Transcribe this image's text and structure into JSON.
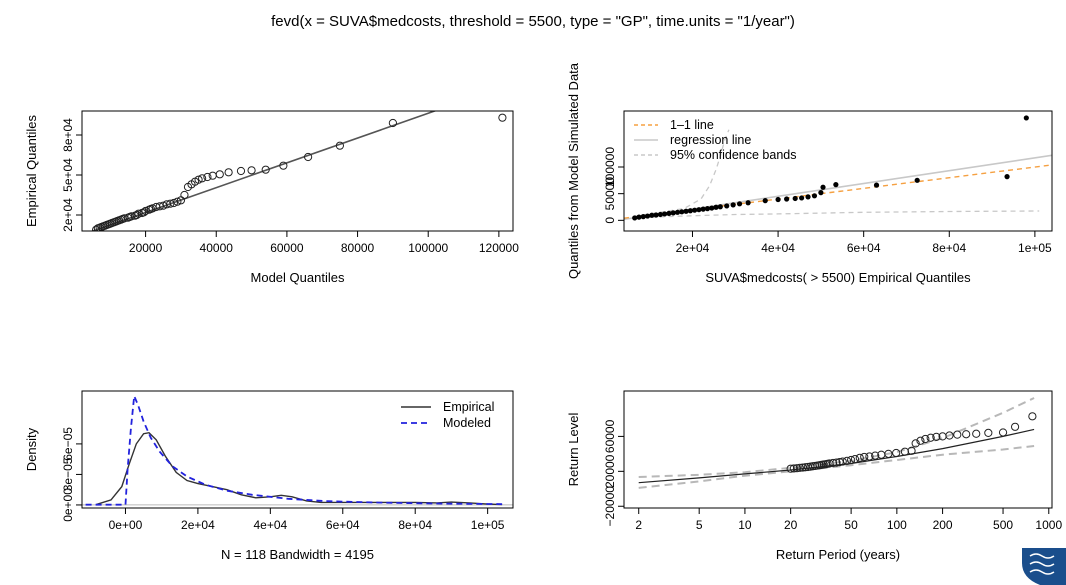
{
  "main_title": "fevd(x = SUVA$medcosts, threshold = 5500, type = \"GP\", time.units = \"1/year\")",
  "colors": {
    "axis": "#000000",
    "line": "#555555",
    "orange": "#f5a041",
    "lightgray": "#c8c8c8",
    "blue": "#2222dd",
    "crest_blue": "#1a4e8c"
  },
  "logo": {
    "name": "crest-logo"
  },
  "chart_data": [
    {
      "id": "qq-model",
      "type": "scatter",
      "xlabel": "Model Quantiles",
      "ylabel": "Empirical Quantiles",
      "xlim": [
        2000,
        124000
      ],
      "ylim": [
        8000,
        98000
      ],
      "xticks": [
        20000,
        40000,
        60000,
        80000,
        100000,
        120000
      ],
      "xtick_labels": [
        "20000",
        "40000",
        "60000",
        "80000",
        "100000",
        "120000"
      ],
      "yticks": [
        20000,
        50000,
        80000
      ],
      "ytick_labels": [
        "2e+04",
        "5e+04",
        "8e+04"
      ],
      "line": [
        [
          4000,
          7000
        ],
        [
          104000,
          100000
        ]
      ],
      "points": [
        [
          6000,
          9000
        ],
        [
          6500,
          10000
        ],
        [
          7000,
          10500
        ],
        [
          7500,
          11000
        ],
        [
          8000,
          11500
        ],
        [
          8500,
          12000
        ],
        [
          9000,
          12500
        ],
        [
          9500,
          13000
        ],
        [
          10000,
          13500
        ],
        [
          10500,
          14000
        ],
        [
          11000,
          14500
        ],
        [
          11500,
          15000
        ],
        [
          12000,
          15500
        ],
        [
          12500,
          16000
        ],
        [
          13000,
          16500
        ],
        [
          13500,
          17000
        ],
        [
          14000,
          17500
        ],
        [
          15000,
          18000
        ],
        [
          15500,
          18500
        ],
        [
          16000,
          19000
        ],
        [
          17000,
          19500
        ],
        [
          17500,
          20000
        ],
        [
          18000,
          21000
        ],
        [
          19000,
          21500
        ],
        [
          19500,
          22000
        ],
        [
          20000,
          23000
        ],
        [
          21000,
          24000
        ],
        [
          21500,
          24500
        ],
        [
          22000,
          25000
        ],
        [
          23000,
          26000
        ],
        [
          24000,
          26500
        ],
        [
          25000,
          27000
        ],
        [
          26000,
          28000
        ],
        [
          27000,
          28500
        ],
        [
          28000,
          29000
        ],
        [
          29000,
          30000
        ],
        [
          30000,
          31000
        ],
        [
          31000,
          35000
        ],
        [
          32000,
          41000
        ],
        [
          33000,
          43000
        ],
        [
          34000,
          45000
        ],
        [
          35000,
          46500
        ],
        [
          36000,
          47500
        ],
        [
          37500,
          48500
        ],
        [
          39000,
          49500
        ],
        [
          41000,
          50500
        ],
        [
          43500,
          52000
        ],
        [
          47000,
          53000
        ],
        [
          50000,
          53500
        ],
        [
          54000,
          54000
        ],
        [
          59000,
          57000
        ],
        [
          66000,
          63500
        ],
        [
          75000,
          72000
        ],
        [
          90000,
          89000
        ],
        [
          121000,
          93000
        ]
      ]
    },
    {
      "id": "qq-simulated",
      "type": "scatter",
      "xlabel": "SUVA$medcosts( > 5500) Empirical Quantiles",
      "ylabel": "Quantiles from Model Simulated Data",
      "xlim": [
        4000,
        104000
      ],
      "ylim": [
        -20000,
        205000
      ],
      "xticks": [
        20000,
        40000,
        60000,
        80000,
        100000
      ],
      "xtick_labels": [
        "2e+04",
        "4e+04",
        "6e+04",
        "8e+04",
        "1e+05"
      ],
      "yticks": [
        0,
        50000,
        100000
      ],
      "ytick_labels": [
        "0",
        "50000",
        "100000"
      ],
      "legend": {
        "position": "top-left",
        "entries": [
          "1–1 line",
          "regression line",
          "95% confidence bands"
        ]
      },
      "one_to_one": [
        [
          4000,
          4000
        ],
        [
          104000,
          104000
        ]
      ],
      "regression": [
        [
          4000,
          2000
        ],
        [
          104000,
          122000
        ]
      ],
      "band_upper": [
        [
          6000,
          7000
        ],
        [
          10000,
          12000
        ],
        [
          14000,
          17000
        ],
        [
          18000,
          22000
        ],
        [
          22000,
          40000
        ],
        [
          24000,
          65000
        ],
        [
          25500,
          95000
        ],
        [
          26500,
          120000
        ],
        [
          27500,
          150000
        ],
        [
          28500,
          170000
        ]
      ],
      "band_lower": [
        [
          6000,
          5000
        ],
        [
          14000,
          7000
        ],
        [
          22000,
          9000
        ],
        [
          30000,
          11000
        ],
        [
          40000,
          12000
        ],
        [
          50000,
          13500
        ],
        [
          60000,
          15000
        ],
        [
          80000,
          16500
        ],
        [
          101000,
          17500
        ]
      ],
      "points": [
        [
          6500,
          4500
        ],
        [
          7500,
          6000
        ],
        [
          8500,
          7000
        ],
        [
          9500,
          8000
        ],
        [
          10500,
          9500
        ],
        [
          11500,
          10000
        ],
        [
          12500,
          11000
        ],
        [
          13500,
          12000
        ],
        [
          14500,
          13000
        ],
        [
          15500,
          14000
        ],
        [
          16500,
          15000
        ],
        [
          17500,
          16000
        ],
        [
          18500,
          17000
        ],
        [
          19500,
          18000
        ],
        [
          20500,
          19000
        ],
        [
          21500,
          20000
        ],
        [
          22500,
          21000
        ],
        [
          23500,
          22000
        ],
        [
          24500,
          23000
        ],
        [
          25500,
          24500
        ],
        [
          26500,
          25500
        ],
        [
          28000,
          27000
        ],
        [
          29500,
          29000
        ],
        [
          31000,
          31000
        ],
        [
          33000,
          33000
        ],
        [
          37000,
          37000
        ],
        [
          40000,
          39000
        ],
        [
          42000,
          40000
        ],
        [
          44000,
          41000
        ],
        [
          45500,
          42000
        ],
        [
          47000,
          44000
        ],
        [
          48500,
          46000
        ],
        [
          50000,
          52000
        ],
        [
          50500,
          62000
        ],
        [
          53500,
          67000
        ],
        [
          63000,
          66000
        ],
        [
          72500,
          75000
        ],
        [
          93500,
          82000
        ],
        [
          98000,
          192000
        ]
      ]
    },
    {
      "id": "density",
      "type": "line",
      "xlabel": "N = 118   Bandwidth = 4195",
      "ylabel": "Density",
      "xlim": [
        -12000,
        107000
      ],
      "ylim": [
        -3e-06,
        0.000112
      ],
      "xticks": [
        0,
        20000,
        40000,
        60000,
        80000,
        100000
      ],
      "xtick_labels": [
        "0e+00",
        "2e+04",
        "4e+04",
        "6e+04",
        "8e+04",
        "1e+05"
      ],
      "yticks": [
        0,
        3e-05,
        6e-05
      ],
      "ytick_labels": [
        "0e+00",
        "3e−05",
        "6e−05"
      ],
      "legend": {
        "position": "top-right",
        "entries": [
          "Empirical",
          "Modeled"
        ]
      },
      "series": [
        {
          "name": "Empirical",
          "style": "solid",
          "points": [
            [
              -8000,
              5e-07
            ],
            [
              -4000,
              5e-06
            ],
            [
              -1000,
              1.8e-05
            ],
            [
              1000,
              4e-05
            ],
            [
              3000,
              6e-05
            ],
            [
              5000,
              7e-05
            ],
            [
              6500,
              7.1e-05
            ],
            [
              8500,
              6.4e-05
            ],
            [
              11000,
              4.8e-05
            ],
            [
              14000,
              3.2e-05
            ],
            [
              17000,
              2.4e-05
            ],
            [
              20000,
              2.1e-05
            ],
            [
              24000,
              1.8e-05
            ],
            [
              28000,
              1.5e-05
            ],
            [
              32000,
              1e-05
            ],
            [
              36000,
              7e-06
            ],
            [
              40000,
              8e-06
            ],
            [
              43000,
              9.5e-06
            ],
            [
              46000,
              8e-06
            ],
            [
              50000,
              4e-06
            ],
            [
              54000,
              2.5e-06
            ],
            [
              60000,
              2.5e-06
            ],
            [
              70000,
              2.5e-06
            ],
            [
              80000,
              2.5e-06
            ],
            [
              86000,
              2e-06
            ],
            [
              90000,
              2.8e-06
            ],
            [
              95000,
              2e-06
            ],
            [
              100000,
              8e-07
            ],
            [
              104000,
              3e-07
            ]
          ]
        },
        {
          "name": "Modeled",
          "style": "dashed",
          "points": [
            [
              -11000,
              2e-07
            ],
            [
              0,
              2e-07
            ],
            [
              600,
              3.5e-05
            ],
            [
              1500,
              7.5e-05
            ],
            [
              2400,
              0.000107
            ],
            [
              3500,
              9.8e-05
            ],
            [
              5000,
              8.2e-05
            ],
            [
              7000,
              6.6e-05
            ],
            [
              9500,
              5.2e-05
            ],
            [
              13000,
              3.8e-05
            ],
            [
              17000,
              2.8e-05
            ],
            [
              22000,
              2e-05
            ],
            [
              28000,
              1.4e-05
            ],
            [
              35000,
              1e-05
            ],
            [
              45000,
              6e-06
            ],
            [
              55000,
              3.8e-06
            ],
            [
              70000,
              2.3e-06
            ],
            [
              85000,
              1.4e-06
            ],
            [
              104000,
              8e-07
            ]
          ]
        }
      ],
      "baseline_y": 0
    },
    {
      "id": "return-level",
      "type": "line",
      "xlabel": "Return Period (years)",
      "ylabel": "Return Level",
      "xscale": "log",
      "xlim": [
        1.6,
        1050
      ],
      "ylim": [
        -22000,
        112000
      ],
      "xticks": [
        2,
        5,
        10,
        20,
        50,
        100,
        200,
        500,
        1000
      ],
      "xtick_labels": [
        "2",
        "5",
        "10",
        "20",
        "50",
        "100",
        "200",
        "500",
        "1000"
      ],
      "yticks": [
        -20000,
        20000,
        60000
      ],
      "ytick_labels": [
        "−20000",
        "20000",
        "60000"
      ],
      "fit": [
        [
          2,
          7000
        ],
        [
          5,
          12500
        ],
        [
          10,
          17000
        ],
        [
          20,
          21500
        ],
        [
          50,
          29000
        ],
        [
          100,
          37000
        ],
        [
          200,
          46000
        ],
        [
          500,
          60000
        ],
        [
          800,
          68000
        ]
      ],
      "ci_upper": [
        [
          2,
          13500
        ],
        [
          5,
          16000
        ],
        [
          10,
          19000
        ],
        [
          20,
          24000
        ],
        [
          50,
          32000
        ],
        [
          100,
          42000
        ],
        [
          200,
          58000
        ],
        [
          500,
          87000
        ],
        [
          800,
          104000
        ]
      ],
      "ci_lower": [
        [
          2,
          1000
        ],
        [
          5,
          8500
        ],
        [
          10,
          15000
        ],
        [
          20,
          20000
        ],
        [
          50,
          27000
        ],
        [
          100,
          33000
        ],
        [
          200,
          39000
        ],
        [
          500,
          45000
        ],
        [
          800,
          49000
        ]
      ],
      "points": [
        [
          20,
          23000
        ],
        [
          21,
          23300
        ],
        [
          22,
          23600
        ],
        [
          23,
          24000
        ],
        [
          24,
          24300
        ],
        [
          25,
          24700
        ],
        [
          26,
          25000
        ],
        [
          27,
          25400
        ],
        [
          28,
          25800
        ],
        [
          29,
          26200
        ],
        [
          30,
          26600
        ],
        [
          31,
          27000
        ],
        [
          32,
          27400
        ],
        [
          33,
          27800
        ],
        [
          34,
          28200
        ],
        [
          35,
          28600
        ],
        [
          36,
          29000
        ],
        [
          38,
          29500
        ],
        [
          40,
          30000
        ],
        [
          42,
          30600
        ],
        [
          44,
          31200
        ],
        [
          47,
          32000
        ],
        [
          50,
          33000
        ],
        [
          53,
          34000
        ],
        [
          57,
          35500
        ],
        [
          61,
          36500
        ],
        [
          66,
          37000
        ],
        [
          72,
          38000
        ],
        [
          79,
          39000
        ],
        [
          88,
          40000
        ],
        [
          99,
          41000
        ],
        [
          113,
          42500
        ],
        [
          125,
          43500
        ],
        [
          133,
          52000
        ],
        [
          143,
          55000
        ],
        [
          154,
          57000
        ],
        [
          167,
          58500
        ],
        [
          182,
          59500
        ],
        [
          200,
          60000
        ],
        [
          222,
          61000
        ],
        [
          250,
          62000
        ],
        [
          286,
          62500
        ],
        [
          333,
          63000
        ],
        [
          400,
          64000
        ],
        [
          500,
          64500
        ],
        [
          600,
          71000
        ],
        [
          780,
          83000
        ]
      ]
    }
  ]
}
